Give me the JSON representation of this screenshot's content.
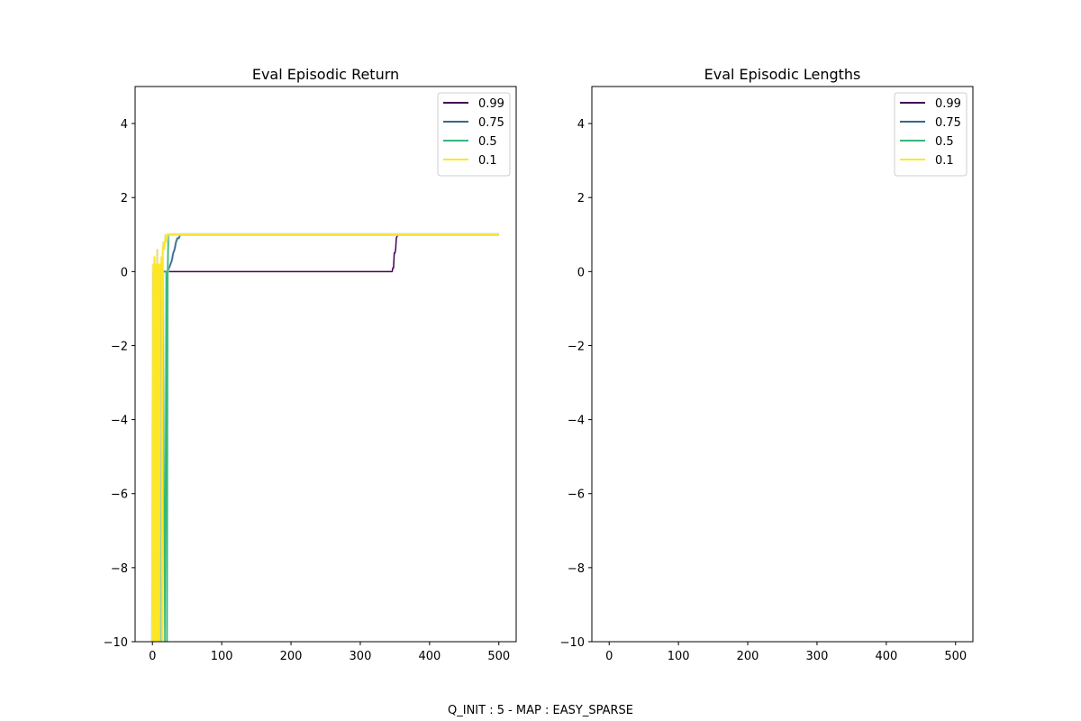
{
  "figure": {
    "suptitle": "Q_INIT : 5 - MAP : EASY_SPARSE"
  },
  "chart_data": [
    {
      "type": "line",
      "title": "Eval Episodic Return",
      "xlabel": "",
      "ylabel": "",
      "xlim": [
        -25,
        525
      ],
      "ylim": [
        -10,
        5
      ],
      "xticks": [
        0,
        100,
        200,
        300,
        400,
        500
      ],
      "yticks": [
        -10,
        -8,
        -6,
        -4,
        -2,
        0,
        2,
        4
      ],
      "xtick_labels": [
        "0",
        "100",
        "200",
        "300",
        "400",
        "500"
      ],
      "ytick_labels": [
        "−10",
        "−8",
        "−6",
        "−4",
        "−2",
        "0",
        "2",
        "4"
      ],
      "legend_position": "upper right",
      "grid": false,
      "series": [
        {
          "name": "0.99",
          "color": "#440154",
          "x": [
            0,
            1,
            2,
            3,
            4,
            5,
            6,
            7,
            8,
            9,
            10,
            11,
            12,
            14,
            16,
            20,
            50,
            100,
            200,
            300,
            346,
            347,
            348,
            349,
            350,
            351,
            352,
            353,
            355,
            400,
            450,
            500
          ],
          "y": [
            -10,
            0,
            -10,
            0,
            -10,
            0,
            0,
            -10,
            0,
            -10,
            0,
            -10,
            0,
            0,
            0,
            0,
            0,
            0,
            0,
            0,
            0,
            0.1,
            0.1,
            0.5,
            0.5,
            0.6,
            0.9,
            0.95,
            1,
            1,
            1,
            1
          ]
        },
        {
          "name": "0.75",
          "color": "#31688e",
          "x": [
            0,
            2,
            4,
            6,
            8,
            10,
            11,
            12,
            13,
            14,
            16,
            18,
            20,
            22,
            24,
            26,
            28,
            30,
            32,
            34,
            36,
            38,
            40,
            60,
            100,
            200,
            300,
            400,
            500
          ],
          "y": [
            -10,
            0,
            -10,
            0,
            -10,
            0,
            -10,
            0,
            -10,
            0,
            0,
            0,
            0,
            0,
            0.1,
            0.2,
            0.3,
            0.5,
            0.6,
            0.8,
            0.9,
            0.9,
            1,
            1,
            1,
            1,
            1,
            1,
            1
          ],
          "shade_color": "#a9b8cc"
        },
        {
          "name": "0.5",
          "color": "#35b779",
          "x": [
            0,
            3,
            6,
            9,
            12,
            15,
            18,
            20,
            21,
            22,
            23,
            24,
            26,
            30,
            100,
            200,
            300,
            400,
            500
          ],
          "y": [
            -10,
            0,
            -10,
            0,
            -10,
            0,
            -10,
            0,
            -10,
            0,
            1,
            1,
            1,
            1,
            1,
            1,
            1,
            1,
            1
          ],
          "shade_color": "#b9e3cd"
        },
        {
          "name": "0.1",
          "color": "#fde725",
          "x": [
            0,
            1,
            2,
            3,
            4,
            5,
            6,
            7,
            8,
            9,
            10,
            11,
            12,
            13,
            14,
            15,
            16,
            17,
            18,
            19,
            20,
            21,
            22,
            100,
            200,
            300,
            400,
            500
          ],
          "y": [
            -10,
            0.2,
            -10,
            0.4,
            -10,
            0.2,
            -10,
            0.6,
            -10,
            0.2,
            -10,
            0.2,
            0,
            0.4,
            -10,
            0.6,
            0.8,
            0.6,
            0.8,
            1,
            0.8,
            0.9,
            1,
            1,
            1,
            1,
            1,
            1
          ],
          "shade_color": "#d6d8dc"
        }
      ]
    },
    {
      "type": "line",
      "title": "Eval Episodic Lengths",
      "xlabel": "",
      "ylabel": "",
      "xlim": [
        -25,
        525
      ],
      "ylim": [
        -10,
        5
      ],
      "xticks": [
        0,
        100,
        200,
        300,
        400,
        500
      ],
      "yticks": [
        -10,
        -8,
        -6,
        -4,
        -2,
        0,
        2,
        4
      ],
      "xtick_labels": [
        "0",
        "100",
        "200",
        "300",
        "400",
        "500"
      ],
      "ytick_labels": [
        "−10",
        "−8",
        "−6",
        "−4",
        "−2",
        "0",
        "2",
        "4"
      ],
      "legend_position": "upper right",
      "grid": false,
      "series": [
        {
          "name": "0.99",
          "color": "#440154",
          "x": [],
          "y": []
        },
        {
          "name": "0.75",
          "color": "#31688e",
          "x": [],
          "y": []
        },
        {
          "name": "0.5",
          "color": "#35b779",
          "x": [],
          "y": []
        },
        {
          "name": "0.1",
          "color": "#fde725",
          "x": [],
          "y": []
        }
      ]
    }
  ]
}
